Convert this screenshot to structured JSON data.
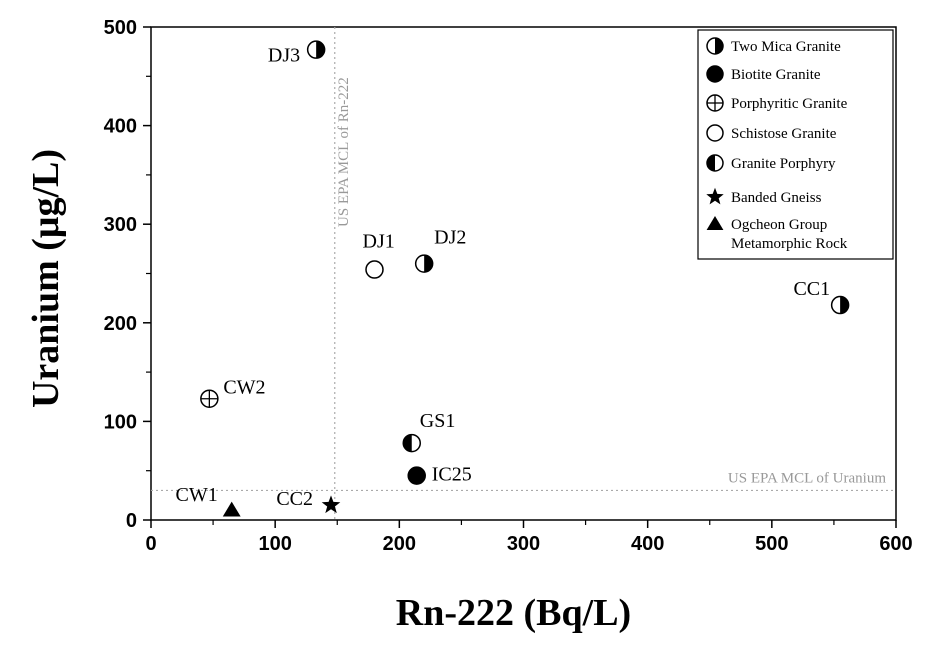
{
  "chart_data": {
    "type": "scatter",
    "xlabel": "Rn-222 (Bq/L)",
    "ylabel": "Uranium (μg/L)",
    "xlim": [
      0,
      600
    ],
    "ylim": [
      0,
      500
    ],
    "x_ticks": [
      "0",
      "100",
      "200",
      "300",
      "400",
      "500",
      "600"
    ],
    "y_ticks": [
      "0",
      "100",
      "200",
      "300",
      "400",
      "500"
    ],
    "grid": false,
    "legend_position": "top-right",
    "series": [
      {
        "name": "Two Mica Granite",
        "marker": "half-right",
        "points": [
          {
            "label": "DJ3",
            "x": 133,
            "y": 477
          },
          {
            "label": "DJ2",
            "x": 220,
            "y": 260
          },
          {
            "label": "CC1",
            "x": 555,
            "y": 218
          }
        ]
      },
      {
        "name": "Biotite Granite",
        "marker": "filled-circle",
        "points": [
          {
            "label": "IC25",
            "x": 214,
            "y": 45
          }
        ]
      },
      {
        "name": "Porphyritic Granite",
        "marker": "crossed-circle",
        "points": [
          {
            "label": "CW2",
            "x": 47,
            "y": 123
          }
        ]
      },
      {
        "name": "Schistose Granite",
        "marker": "open-circle",
        "points": [
          {
            "label": "DJ1",
            "x": 180,
            "y": 254
          }
        ]
      },
      {
        "name": "Granite Porphyry",
        "marker": "half-left",
        "points": [
          {
            "label": "GS1",
            "x": 210,
            "y": 78
          }
        ]
      },
      {
        "name": "Banded Gneiss",
        "marker": "star",
        "points": [
          {
            "label": "CC2",
            "x": 145,
            "y": 15
          }
        ]
      },
      {
        "name": "Ogcheon Group\nMetamorphic Rock",
        "marker": "triangle",
        "points": [
          {
            "label": "CW1",
            "x": 65,
            "y": 10
          }
        ]
      }
    ],
    "reference_lines": [
      {
        "axis": "x",
        "value": 148,
        "label": "US EPA MCL of Rn-222"
      },
      {
        "axis": "y",
        "value": 30,
        "label": "US EPA MCL of Uranium"
      }
    ]
  }
}
